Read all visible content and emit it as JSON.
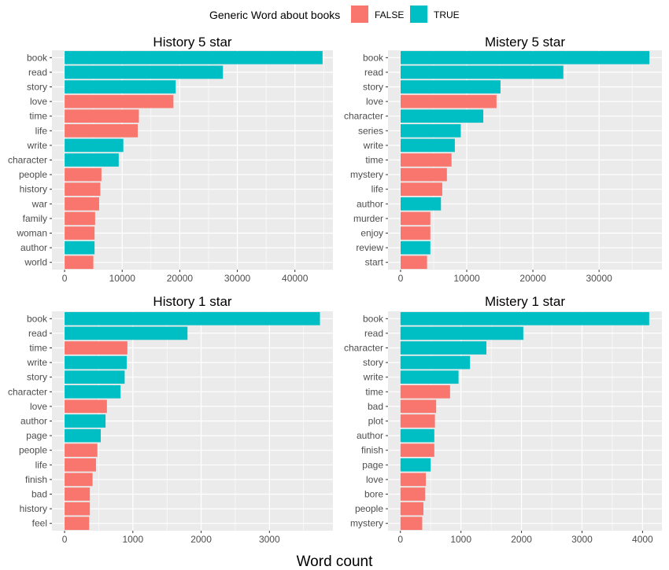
{
  "legend": {
    "title": "Generic Word about books",
    "items": [
      {
        "label": "FALSE",
        "color": "#F8766D"
      },
      {
        "label": "TRUE",
        "color": "#00BFC4"
      }
    ]
  },
  "xlabel": "Word count",
  "colors": {
    "FALSE": "#F8766D",
    "TRUE": "#00BFC4",
    "panel_bg": "#EBEBEB",
    "grid": "#FFFFFF"
  },
  "chart_data": [
    {
      "type": "bar",
      "orientation": "horizontal",
      "title": "History 5 star",
      "xticks": [
        0,
        10000,
        20000,
        30000,
        40000
      ],
      "xlim": [
        -2200,
        46600
      ],
      "categories": [
        "book",
        "read",
        "story",
        "love",
        "time",
        "life",
        "write",
        "character",
        "people",
        "history",
        "war",
        "family",
        "woman",
        "author",
        "world"
      ],
      "values": [
        44800,
        27500,
        19300,
        18900,
        12900,
        12700,
        10200,
        9400,
        6400,
        6200,
        6000,
        5300,
        5200,
        5200,
        5000
      ],
      "generic": [
        true,
        true,
        true,
        false,
        false,
        false,
        true,
        true,
        false,
        false,
        false,
        false,
        false,
        true,
        false
      ]
    },
    {
      "type": "bar",
      "orientation": "horizontal",
      "title": "Mistery 5 star",
      "xticks": [
        0,
        10000,
        20000,
        30000
      ],
      "xlim": [
        -1900,
        39500
      ],
      "categories": [
        "book",
        "read",
        "story",
        "love",
        "character",
        "series",
        "write",
        "time",
        "mystery",
        "life",
        "author",
        "murder",
        "enjoy",
        "review",
        "start"
      ],
      "values": [
        37600,
        24600,
        15100,
        14500,
        12500,
        9100,
        8200,
        7700,
        7000,
        6300,
        6100,
        4500,
        4500,
        4500,
        4000
      ],
      "generic": [
        true,
        true,
        true,
        false,
        true,
        true,
        true,
        false,
        false,
        false,
        true,
        false,
        false,
        true,
        false
      ]
    },
    {
      "type": "bar",
      "orientation": "horizontal",
      "title": "History 1 star",
      "xticks": [
        0,
        1000,
        2000,
        3000
      ],
      "xlim": [
        -185,
        3930
      ],
      "categories": [
        "book",
        "read",
        "time",
        "write",
        "story",
        "character",
        "love",
        "author",
        "page",
        "people",
        "life",
        "finish",
        "bad",
        "history",
        "feel"
      ],
      "values": [
        3740,
        1800,
        920,
        910,
        880,
        820,
        620,
        600,
        530,
        480,
        460,
        410,
        370,
        370,
        360
      ],
      "generic": [
        true,
        true,
        false,
        true,
        true,
        true,
        false,
        true,
        true,
        false,
        false,
        false,
        false,
        false,
        false
      ]
    },
    {
      "type": "bar",
      "orientation": "horizontal",
      "title": "Mistery 1 star",
      "xticks": [
        0,
        1000,
        2000,
        3000,
        4000
      ],
      "xlim": [
        -205,
        4320
      ],
      "categories": [
        "book",
        "read",
        "character",
        "story",
        "write",
        "time",
        "bad",
        "plot",
        "author",
        "finish",
        "page",
        "love",
        "bore",
        "people",
        "mystery"
      ],
      "values": [
        4110,
        2030,
        1420,
        1150,
        960,
        820,
        590,
        570,
        560,
        560,
        500,
        420,
        410,
        380,
        360
      ],
      "generic": [
        true,
        true,
        true,
        true,
        true,
        false,
        false,
        false,
        true,
        false,
        true,
        false,
        false,
        false,
        false
      ]
    }
  ]
}
